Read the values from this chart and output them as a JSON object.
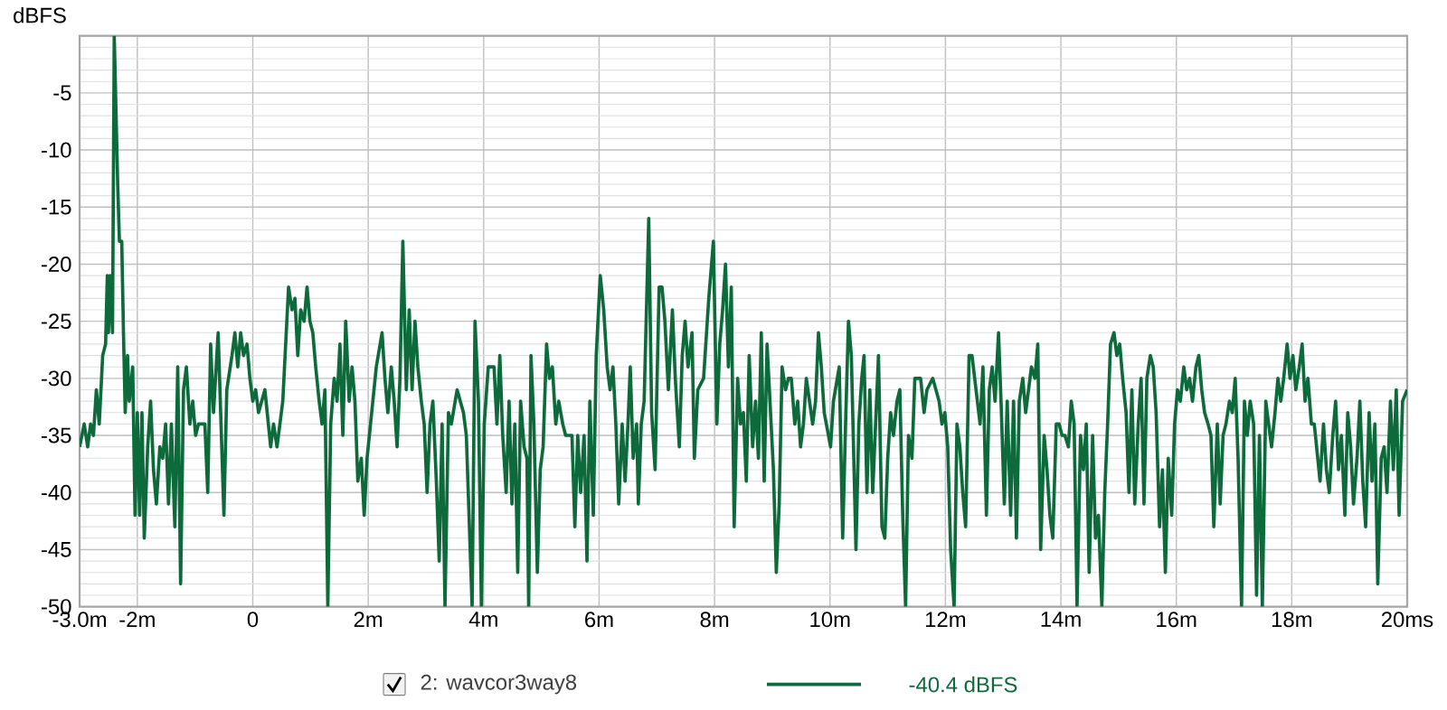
{
  "chart_data": {
    "type": "line",
    "ylabel": "dBFS",
    "xlim": [
      -3,
      20
    ],
    "ylim": [
      -50,
      0
    ],
    "xticks": [
      {
        "value": -3,
        "label": "-3.0m"
      },
      {
        "value": -2,
        "label": "-2m"
      },
      0,
      {
        "value": 2,
        "label": "2m"
      },
      {
        "value": 4,
        "label": "4m"
      },
      {
        "value": 6,
        "label": "6m"
      },
      {
        "value": 8,
        "label": "8m"
      },
      {
        "value": 10,
        "label": "10m"
      },
      {
        "value": 12,
        "label": "12m"
      },
      {
        "value": 14,
        "label": "14m"
      },
      {
        "value": 16,
        "label": "16m"
      },
      {
        "value": 18,
        "label": "18m"
      },
      {
        "value": 20,
        "label": "20ms"
      }
    ],
    "yticks": [
      {
        "value": -50,
        "label": "-50"
      },
      -45,
      -40,
      -35,
      -30,
      -25,
      -20,
      -15,
      -10,
      -5,
      {
        "value": 0,
        "label": null
      }
    ],
    "grid": true,
    "legend": "bottom",
    "line_style": "solid",
    "annotations": [
      "-40.4 dBFS"
    ],
    "series": [
      {
        "name": "2: wavcor3way8",
        "color": "#0d6b3b",
        "x": [
          -3.0,
          -2.92,
          -2.86,
          -2.81,
          -2.76,
          -2.71,
          -2.66,
          -2.6,
          -2.55,
          -2.52,
          -2.5,
          -2.47,
          -2.43,
          -2.4,
          -2.34,
          -2.31,
          -2.27,
          -2.24,
          -2.21,
          -2.17,
          -2.14,
          -2.08,
          -2.04,
          -2.0,
          -1.96,
          -1.92,
          -1.88,
          -1.82,
          -1.77,
          -1.72,
          -1.67,
          -1.61,
          -1.56,
          -1.51,
          -1.46,
          -1.41,
          -1.35,
          -1.3,
          -1.25,
          -1.2,
          -1.15,
          -1.09,
          -1.04,
          -0.99,
          -0.94,
          -0.83,
          -0.78,
          -0.73,
          -0.68,
          -0.6,
          -0.55,
          -0.5,
          -0.45,
          -0.36,
          -0.31,
          -0.26,
          -0.21,
          -0.16,
          -0.1,
          -0.05,
          0,
          0.05,
          0.1,
          0.21,
          0.31,
          0.36,
          0.42,
          0.52,
          0.62,
          0.68,
          0.73,
          0.78,
          0.83,
          0.89,
          0.94,
          0.99,
          1.04,
          1.09,
          1.15,
          1.2,
          1.25,
          1.3,
          1.35,
          1.41,
          1.46,
          1.51,
          1.56,
          1.61,
          1.67,
          1.72,
          1.77,
          1.82,
          1.88,
          1.93,
          1.98,
          2.08,
          2.14,
          2.24,
          2.29,
          2.34,
          2.4,
          2.45,
          2.5,
          2.55,
          2.6,
          2.66,
          2.71,
          2.76,
          2.81,
          2.86,
          2.92,
          2.97,
          3.02,
          3.07,
          3.12,
          3.18,
          3.23,
          3.28,
          3.33,
          3.39,
          3.44,
          3.54,
          3.65,
          3.7,
          3.8,
          3.85,
          3.91,
          3.96,
          4.01,
          4.08,
          4.18,
          4.23,
          4.28,
          4.33,
          4.39,
          4.44,
          4.49,
          4.54,
          4.59,
          4.64,
          4.7,
          4.75,
          4.78,
          4.82,
          4.87,
          4.93,
          4.98,
          5.03,
          5.09,
          5.14,
          5.19,
          5.25,
          5.3,
          5.37,
          5.42,
          5.53,
          5.58,
          5.63,
          5.68,
          5.74,
          5.79,
          5.84,
          5.9,
          5.95,
          6.02,
          6.08,
          6.14,
          6.19,
          6.24,
          6.29,
          6.34,
          6.4,
          6.45,
          6.5,
          6.54,
          6.59,
          6.65,
          6.68,
          6.73,
          6.78,
          6.86,
          6.91,
          6.97,
          7.04,
          7.09,
          7.14,
          7.2,
          7.27,
          7.32,
          7.39,
          7.44,
          7.49,
          7.54,
          7.61,
          7.65,
          7.71,
          7.81,
          7.9,
          7.98,
          8.04,
          8.09,
          8.14,
          8.19,
          8.24,
          8.29,
          8.34,
          8.4,
          8.45,
          8.5,
          8.55,
          8.6,
          8.66,
          8.71,
          8.76,
          8.81,
          8.86,
          8.91,
          8.97,
          9.02,
          9.07,
          9.12,
          9.17,
          9.23,
          9.28,
          9.33,
          9.39,
          9.44,
          9.49,
          9.54,
          9.59,
          9.7,
          9.75,
          9.8,
          9.85,
          9.9,
          10.01,
          10.06,
          10.16,
          10.22,
          10.27,
          10.32,
          10.37,
          10.45,
          10.5,
          10.55,
          10.59,
          10.64,
          10.69,
          10.74,
          10.79,
          10.84,
          10.9,
          10.95,
          11.0,
          11.05,
          11.1,
          11.16,
          11.21,
          11.26,
          11.31,
          11.36,
          11.42,
          11.47,
          11.52,
          11.57,
          11.63,
          11.68,
          11.78,
          11.89,
          11.94,
          11.99,
          12.04,
          12.09,
          12.15,
          12.2,
          12.25,
          12.3,
          12.35,
          12.41,
          12.46,
          12.6,
          12.65,
          12.71,
          12.76,
          12.81,
          12.86,
          12.92,
          12.97,
          13.02,
          13.07,
          13.13,
          13.18,
          13.23,
          13.28,
          13.34,
          13.39,
          13.44,
          13.49,
          13.55,
          13.6,
          13.65,
          13.71,
          13.76,
          13.81,
          13.86,
          13.92,
          13.97,
          14.02,
          14.07,
          14.13,
          14.18,
          14.23,
          14.28,
          14.34,
          14.39,
          14.44,
          14.49,
          14.55,
          14.6,
          14.65,
          14.71,
          14.76,
          14.81,
          14.86,
          14.92,
          14.97,
          15.02,
          15.07,
          15.13,
          15.18,
          15.23,
          15.28,
          15.34,
          15.39,
          15.44,
          15.49,
          15.55,
          15.6,
          15.65,
          15.71,
          15.76,
          15.81,
          15.86,
          15.92,
          15.97,
          16.02,
          16.07,
          16.13,
          16.18,
          16.23,
          16.28,
          16.34,
          16.39,
          16.44,
          16.49,
          16.55,
          16.6,
          16.65,
          16.71,
          16.76,
          16.81,
          16.86,
          16.92,
          16.97,
          17.02,
          17.07,
          17.13,
          17.18,
          17.23,
          17.28,
          17.34,
          17.39,
          17.44,
          17.49,
          17.55,
          17.6,
          17.65,
          17.71,
          17.76,
          17.81,
          17.86,
          17.92,
          17.97,
          18.02,
          18.07,
          18.13,
          18.18,
          18.23,
          18.28,
          18.34,
          18.39,
          18.49,
          18.55,
          18.6,
          18.65,
          18.71,
          18.76,
          18.81,
          18.86,
          18.92,
          18.97,
          19.02,
          19.07,
          19.13,
          19.18,
          19.23,
          19.28,
          19.34,
          19.39,
          19.44,
          19.49,
          19.55,
          19.6,
          19.65,
          19.71,
          19.76,
          19.81,
          19.86,
          19.92,
          20.0
        ],
        "values": [
          -36,
          -34,
          -36,
          -34,
          -35,
          -31,
          -34,
          -28,
          -27,
          -21,
          -26,
          -21,
          -26,
          0,
          -13,
          -18,
          -18,
          -26,
          -33,
          -28,
          -32,
          -29,
          -42,
          -33,
          -42,
          -33,
          -44,
          -36,
          -32,
          -38,
          -41,
          -36,
          -37,
          -34,
          -41,
          -34,
          -43,
          -29,
          -48,
          -31,
          -29,
          -34,
          -32,
          -35,
          -34,
          -34,
          -40,
          -27,
          -33,
          -26,
          -34,
          -42,
          -31,
          -28,
          -26,
          -29,
          -26,
          -28,
          -27,
          -30,
          -32,
          -31,
          -33,
          -31,
          -36,
          -34,
          -36,
          -32,
          -22,
          -24,
          -23,
          -28,
          -24,
          -25,
          -22,
          -25,
          -26,
          -29,
          -32,
          -34,
          -31,
          -50,
          -34,
          -30,
          -32,
          -27,
          -35,
          -25,
          -32,
          -29,
          -32,
          -39,
          -37,
          -42,
          -37,
          -32,
          -29,
          -26,
          -30,
          -33,
          -29,
          -32,
          -36,
          -30,
          -18,
          -31,
          -24,
          -31,
          -25,
          -29,
          -32,
          -34,
          -40,
          -34,
          -32,
          -39,
          -46,
          -34,
          -50,
          -33,
          -34,
          -31,
          -33,
          -35,
          -50,
          -25,
          -32,
          -50,
          -34,
          -29,
          -29,
          -34,
          -28,
          -35,
          -40,
          -32,
          -41,
          -34,
          -47,
          -32,
          -36,
          -37,
          -50,
          -28,
          -34,
          -47,
          -38,
          -36,
          -27,
          -30,
          -29,
          -34,
          -32,
          -34,
          -35,
          -35,
          -43,
          -35,
          -40,
          -35,
          -46,
          -32,
          -42,
          -28,
          -21,
          -24,
          -29,
          -31,
          -29,
          -34,
          -41,
          -34,
          -39,
          -34,
          -29,
          -37,
          -34,
          -41,
          -34,
          -32,
          -16,
          -33,
          -38,
          -22,
          -22,
          -25,
          -31,
          -24,
          -30,
          -36,
          -28,
          -25,
          -29,
          -26,
          -37,
          -31,
          -30,
          -23,
          -18,
          -34,
          -27,
          -24,
          -20,
          -29,
          -22,
          -43,
          -30,
          -34,
          -33,
          -39,
          -28,
          -36,
          -32,
          -37,
          -26,
          -39,
          -27,
          -33,
          -38,
          -47,
          -41,
          -29,
          -31,
          -30,
          -30,
          -34,
          -32,
          -36,
          -34,
          -30,
          -34,
          -32,
          -26,
          -29,
          -33,
          -36,
          -32,
          -29,
          -44,
          -34,
          -25,
          -28,
          -45,
          -34,
          -30,
          -28,
          -40,
          -31,
          -40,
          -34,
          -28,
          -43,
          -44,
          -37,
          -33,
          -35,
          -32,
          -31,
          -42,
          -50,
          -35,
          -37,
          -30,
          -30,
          -30,
          -33,
          -31,
          -30,
          -32,
          -34,
          -33,
          -36,
          -45,
          -50,
          -34,
          -36,
          -40,
          -43,
          -28,
          -28,
          -34,
          -29,
          -42,
          -31,
          -29,
          -32,
          -26,
          -33,
          -41,
          -32,
          -42,
          -32,
          -44,
          -32,
          -30,
          -33,
          -31,
          -29,
          -30,
          -27,
          -45,
          -35,
          -38,
          -42,
          -44,
          -34,
          -34,
          -35,
          -35,
          -36,
          -32,
          -34,
          -50,
          -35,
          -38,
          -34,
          -47,
          -35,
          -44,
          -42,
          -50,
          -40,
          -34,
          -27,
          -26,
          -28,
          -27,
          -30,
          -33,
          -40,
          -31,
          -41,
          -34,
          -30,
          -41,
          -30,
          -28,
          -29,
          -33,
          -43,
          -38,
          -47,
          -37,
          -42,
          -34,
          -31,
          -32,
          -29,
          -31,
          -30,
          -32,
          -29,
          -28,
          -31,
          -33,
          -34,
          -35,
          -43,
          -34,
          -41,
          -35,
          -34,
          -32,
          -33,
          -30,
          -37,
          -50,
          -32,
          -35,
          -32,
          -34,
          -49,
          -35,
          -50,
          -32,
          -34,
          -36,
          -33,
          -30,
          -32,
          -30,
          -27,
          -30,
          -28,
          -31,
          -29,
          -27,
          -32,
          -30,
          -34,
          -34,
          -39,
          -34,
          -38,
          -40,
          -35,
          -32,
          -38,
          -35,
          -42,
          -33,
          -36,
          -41,
          -37,
          -32,
          -39,
          -43,
          -33,
          -39,
          -34,
          -48,
          -37,
          -36,
          -40,
          -32,
          -38,
          -31,
          -42,
          -32,
          -31
        ]
      }
    ]
  }
}
